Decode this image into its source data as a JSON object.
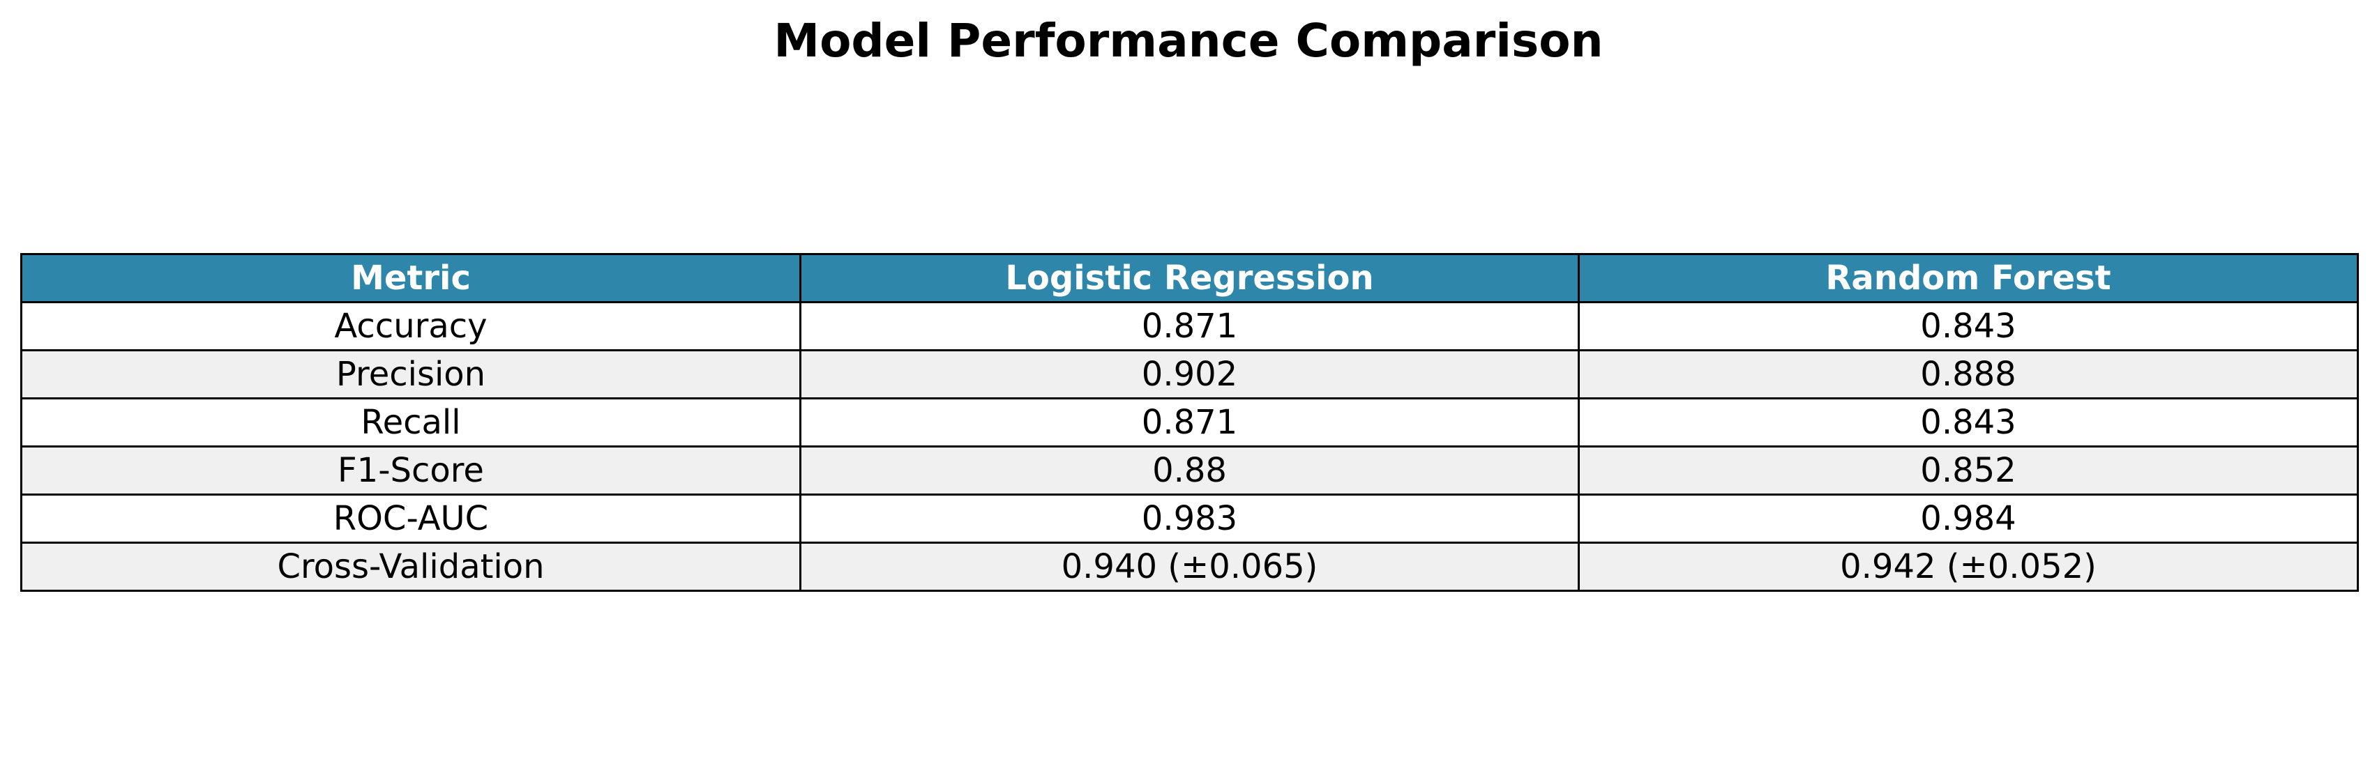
{
  "chart_data": {
    "type": "table",
    "title": "Model Performance Comparison",
    "columns": [
      "Metric",
      "Logistic Regression",
      "Random Forest"
    ],
    "rows": [
      [
        "Accuracy",
        "0.871",
        "0.843"
      ],
      [
        "Precision",
        "0.902",
        "0.888"
      ],
      [
        "Recall",
        "0.871",
        "0.843"
      ],
      [
        "F1-Score",
        "0.88",
        "0.852"
      ],
      [
        "ROC-AUC",
        "0.983",
        "0.984"
      ],
      [
        "Cross-Validation",
        "0.940 (±0.065)",
        "0.942 (±0.052)"
      ]
    ],
    "header_color": "#2e86ab",
    "header_text_color": "#ffffff",
    "alt_row_color": "#f0f0f0"
  }
}
